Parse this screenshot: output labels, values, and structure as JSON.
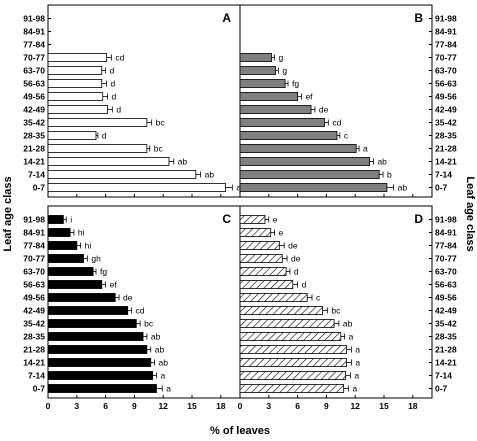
{
  "figure": {
    "xlabel": "% of leaves",
    "ylabel_left": "Leaf age class",
    "ylabel_right": "Leaf age class"
  },
  "chart_data": [
    {
      "type": "bar",
      "orientation": "horizontal",
      "panel": "A",
      "fill": "#ffffff",
      "pattern": "solid",
      "categories": [
        "0-7",
        "7-14",
        "14-21",
        "21-28",
        "28-35",
        "35-42",
        "42-49",
        "49-56",
        "56-63",
        "63-70",
        "70-77",
        "77-84",
        "84-91",
        "91-98"
      ],
      "values": [
        18.5,
        15.4,
        12.6,
        10.3,
        5.0,
        10.3,
        6.2,
        5.7,
        5.6,
        5.6,
        6.1,
        null,
        null,
        null
      ],
      "errors": [
        0.7,
        0.5,
        0.5,
        0.3,
        0.2,
        0.5,
        0.5,
        0.5,
        0.5,
        0.4,
        0.5,
        null,
        null,
        null
      ],
      "labels": [
        "a",
        "ab",
        "ab",
        "bc",
        "d",
        "bc",
        "d",
        "d",
        "d",
        "d",
        "cd",
        "",
        "",
        ""
      ],
      "xlim": [
        0,
        20
      ],
      "xticks": [
        0,
        3,
        6,
        9,
        12,
        15,
        18
      ],
      "tick_side": "left"
    },
    {
      "type": "bar",
      "orientation": "horizontal",
      "panel": "B",
      "fill": "#808080",
      "pattern": "solid",
      "categories": [
        "0-7",
        "7-14",
        "14-21",
        "21-28",
        "28-35",
        "35-42",
        "42-49",
        "49-56",
        "56-63",
        "63-70",
        "70-77",
        "77-84",
        "84-91",
        "91-98"
      ],
      "values": [
        15.3,
        14.5,
        13.5,
        12.1,
        10.1,
        8.8,
        7.4,
        6.0,
        4.7,
        3.7,
        3.3,
        null,
        null,
        null
      ],
      "errors": [
        0.7,
        0.4,
        0.4,
        0.3,
        0.3,
        0.4,
        0.4,
        0.4,
        0.3,
        0.3,
        0.3,
        null,
        null,
        null
      ],
      "labels": [
        "ab",
        "b",
        "ab",
        "a",
        "c",
        "cd",
        "de",
        "ef",
        "fg",
        "g",
        "g",
        "",
        "",
        ""
      ],
      "xlim": [
        0,
        20
      ],
      "xticks": [
        0,
        3,
        6,
        9,
        12,
        15,
        18
      ],
      "tick_side": "right"
    },
    {
      "type": "bar",
      "orientation": "horizontal",
      "panel": "C",
      "fill": "#000000",
      "pattern": "solid",
      "categories": [
        "0-7",
        "7-14",
        "14-21",
        "21-28",
        "28-35",
        "35-42",
        "42-49",
        "49-56",
        "56-63",
        "63-70",
        "70-77",
        "77-84",
        "84-91",
        "91-98"
      ],
      "values": [
        11.3,
        10.9,
        10.7,
        10.3,
        9.9,
        9.2,
        8.3,
        7.0,
        5.6,
        4.7,
        3.7,
        3.0,
        2.3,
        1.6
      ],
      "errors": [
        0.6,
        0.4,
        0.4,
        0.4,
        0.4,
        0.4,
        0.4,
        0.4,
        0.4,
        0.3,
        0.4,
        0.4,
        0.4,
        0.3
      ],
      "labels": [
        "a",
        "a",
        "ab",
        "ab",
        "ab",
        "bc",
        "cd",
        "de",
        "ef",
        "fg",
        "gh",
        "hi",
        "hi",
        "i"
      ],
      "xlim": [
        0,
        20
      ],
      "xticks": [
        0,
        3,
        6,
        9,
        12,
        15,
        18
      ],
      "tick_side": "left"
    },
    {
      "type": "bar",
      "orientation": "horizontal",
      "panel": "D",
      "fill": "#ffffff",
      "pattern": "hatched",
      "categories": [
        "0-7",
        "7-14",
        "14-21",
        "21-28",
        "28-35",
        "35-42",
        "42-49",
        "49-56",
        "56-63",
        "63-70",
        "70-77",
        "77-84",
        "84-91",
        "91-98"
      ],
      "values": [
        10.8,
        11.0,
        11.1,
        11.1,
        10.5,
        9.8,
        8.6,
        7.0,
        5.5,
        4.8,
        4.4,
        4.1,
        3.2,
        2.6
      ],
      "errors": [
        0.5,
        0.5,
        0.5,
        0.5,
        0.4,
        0.5,
        0.5,
        0.5,
        0.5,
        0.4,
        0.5,
        0.5,
        0.4,
        0.4
      ],
      "labels": [
        "a",
        "a",
        "a",
        "a",
        "a",
        "ab",
        "bc",
        "c",
        "d",
        "d",
        "de",
        "de",
        "e",
        "e"
      ],
      "xlim": [
        0,
        20
      ],
      "xticks": [
        0,
        3,
        6,
        9,
        12,
        15,
        18
      ],
      "tick_side": "right"
    }
  ]
}
